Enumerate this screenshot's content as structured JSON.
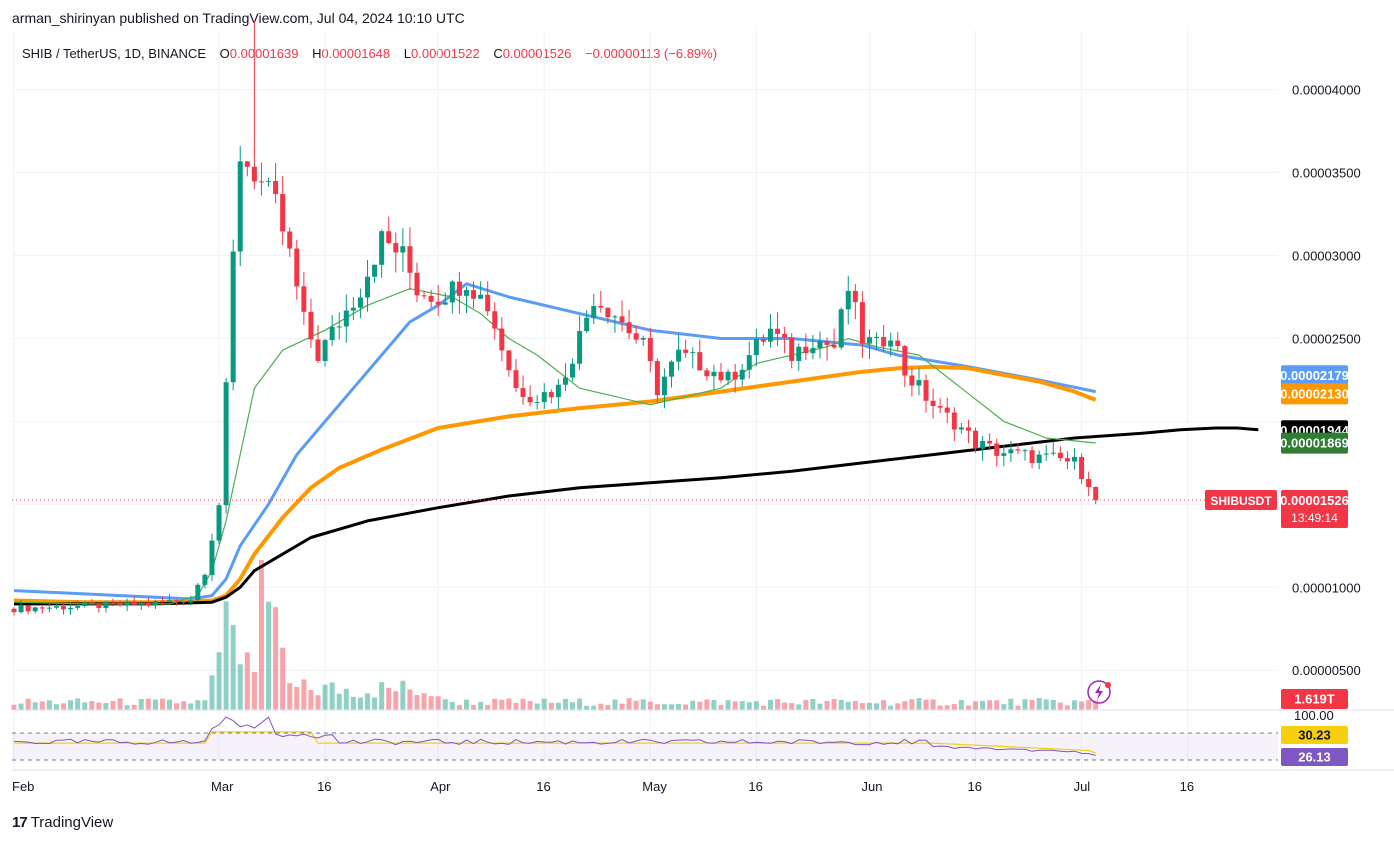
{
  "header": {
    "published": "arman_shirinyan published on TradingView.com, Jul 04, 2024 10:10 UTC"
  },
  "legend": {
    "symbol": "SHIB / TetherUS, 1D, BINANCE",
    "open_label": "O",
    "open": "0.00001639",
    "high_label": "H",
    "high": "0.00001648",
    "low_label": "L",
    "low": "0.00001522",
    "close_label": "C",
    "close": "0.00001526",
    "change": "−0.00000113 (−6.89%)"
  },
  "colors": {
    "up": "#089981",
    "down": "#f23645",
    "ma_blue": "#5b9cf6",
    "ma_orange": "#ff9800",
    "ma_black": "#000000",
    "ma_green": "#4caf50",
    "rsi_line": "#7e57c2",
    "rsi_ma": "#f6d00f"
  },
  "price_badges": [
    {
      "name": "ma-blue",
      "label": "0.00002179",
      "value": 2.179e-05,
      "color": "#5b9cf6"
    },
    {
      "name": "ma-orange",
      "label": "0.00002130",
      "value": 2.13e-05,
      "color": "#ff9800"
    },
    {
      "name": "ma-black",
      "label": "0.00001944",
      "value": 1.944e-05,
      "color": "#000000"
    },
    {
      "name": "ma-green",
      "label": "0.00001869",
      "value": 1.869e-05,
      "color": "#2e7d32"
    }
  ],
  "last_price": {
    "symbol": "SHIBUSDT",
    "label": "0.00001526",
    "value": 1.526e-05,
    "countdown": "13:49:14"
  },
  "volume_badge": "1.619T",
  "rsi": {
    "top_label": "100.00",
    "values": [
      "30.23",
      "26.13"
    ],
    "value_numbers": [
      30.23,
      26.13
    ]
  },
  "x_labels": [
    "Feb",
    "Mar",
    "16",
    "Apr",
    "16",
    "May",
    "16",
    "Jun",
    "16",
    "Jul",
    "16"
  ],
  "chart_data": {
    "type": "candlestick",
    "title": "SHIB / TetherUS, 1D, BINANCE",
    "ylim": [
      2.6e-06,
      4.36e-05
    ],
    "y_ticks": [
      5e-06,
      1e-05,
      2.5e-05,
      3e-05,
      3.5e-05,
      4e-05
    ],
    "y_tick_labels": [
      "0.00000500",
      "0.00001000",
      "0.00002500",
      "0.00003000",
      "0.00003500",
      "0.00004000"
    ],
    "x_tick_days": [
      0,
      29,
      44,
      60,
      75,
      90,
      105,
      121,
      136,
      151,
      166
    ],
    "series": [
      {
        "name": "MA blue",
        "values": [
          9.8,
          9.7,
          9.6,
          9.5,
          9.4,
          9.3,
          9.5,
          10.5,
          12.5,
          15,
          18,
          20,
          22,
          24,
          26,
          27,
          28.3,
          27.5,
          26.5,
          25.5,
          25,
          25,
          24.6,
          24,
          23.3,
          22.5,
          21.8
        ],
        "days": [
          0,
          5,
          10,
          15,
          20,
          25,
          28,
          30,
          32,
          36,
          40,
          44,
          48,
          52,
          56,
          60,
          64,
          70,
          80,
          90,
          100,
          110,
          120,
          125,
          135,
          145,
          153
        ]
      },
      {
        "name": "MA orange",
        "values": [
          9.2,
          9.1,
          9.1,
          9.2,
          9.5,
          10.5,
          12,
          14.2,
          16,
          17.2,
          18.3,
          19.6,
          20.3,
          20.8,
          21.2,
          21.8,
          22.4,
          22.7,
          23,
          23.2,
          23.3,
          23.2,
          22.8,
          22.4,
          21.8,
          21.3
        ],
        "days": [
          0,
          10,
          20,
          28,
          30,
          32,
          34,
          38,
          42,
          46,
          52,
          60,
          70,
          80,
          90,
          100,
          110,
          115,
          120,
          125,
          130,
          135,
          140,
          145,
          150,
          153
        ]
      },
      {
        "name": "MA black",
        "values": [
          9,
          9,
          9,
          9.1,
          9.4,
          10,
          11,
          12,
          13,
          14,
          14.8,
          15.5,
          16,
          16.3,
          16.6,
          17,
          17.5,
          18,
          18.5,
          19,
          19.3,
          19.5,
          19.6,
          19.6,
          19.5,
          19.4
        ],
        "days": [
          0,
          10,
          20,
          28,
          30,
          32,
          34,
          38,
          42,
          50,
          60,
          70,
          80,
          90,
          100,
          110,
          120,
          130,
          140,
          150,
          160,
          165,
          170,
          173,
          176,
          153
        ]
      },
      {
        "name": "MA green",
        "values": [
          9.1,
          9,
          9,
          9.5,
          11,
          14,
          18,
          22,
          24.3,
          25.5,
          27,
          28,
          27.5,
          26.5,
          25,
          24,
          22,
          21,
          22,
          23.5,
          24,
          24.5,
          25,
          24.5,
          24,
          22,
          20,
          19,
          18.7
        ],
        "days": [
          0,
          10,
          22,
          26,
          28,
          30,
          32,
          34,
          38,
          44,
          50,
          56,
          62,
          66,
          70,
          74,
          80,
          90,
          100,
          105,
          110,
          115,
          118,
          122,
          128,
          134,
          140,
          146,
          153
        ]
      }
    ],
    "candles_summary": {
      "days": 154,
      "last_close": 1.526e-05,
      "peak_high": 4.36e-05
    },
    "volume_last": "1.619T",
    "rsi_last": [
      30.23,
      26.13
    ]
  }
}
